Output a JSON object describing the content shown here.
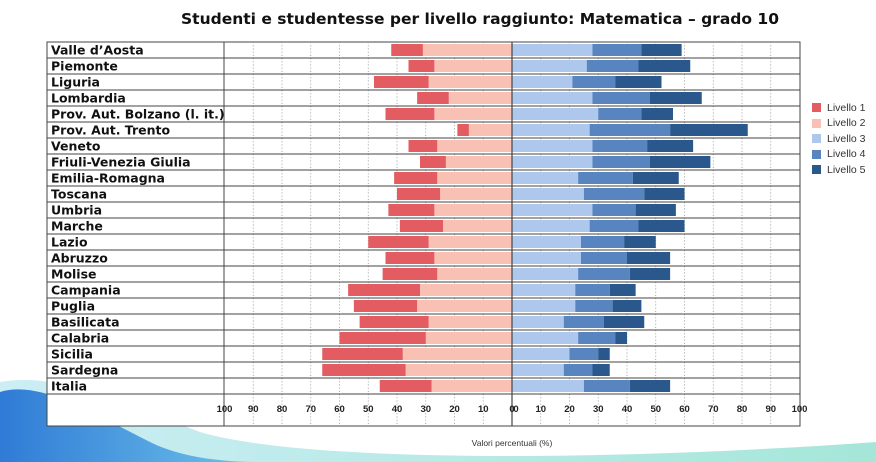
{
  "chart_data": {
    "type": "bar",
    "orientation": "horizontal-diverging",
    "title": "Studenti e studentesse per livello raggiunto: Matematica – grado 10",
    "xlabel": "Valori percentuali (%)",
    "categories": [
      "Valle d’Aosta",
      "Piemonte",
      "Liguria",
      "Lombardia",
      "Prov. Aut. Bolzano (l. it.)",
      "Prov. Aut. Trento",
      "Veneto",
      "Friuli-Venezia Giulia",
      "Emilia-Romagna",
      "Toscana",
      "Umbria",
      "Marche",
      "Lazio",
      "Abruzzo",
      "Molise",
      "Campania",
      "Puglia",
      "Basilicata",
      "Calabria",
      "Sicilia",
      "Sardegna",
      "Italia"
    ],
    "left_tick_labels": [
      "100",
      "90",
      "80",
      "70",
      "60",
      "50",
      "40",
      "30",
      "20",
      "10",
      "0"
    ],
    "right_tick_labels": [
      "0",
      "10",
      "20",
      "30",
      "40",
      "50",
      "60",
      "70",
      "80",
      "90",
      "100"
    ],
    "xlim_left": [
      100,
      0
    ],
    "xlim_right": [
      0,
      100
    ],
    "grid": true,
    "legend_position": "right",
    "series": [
      {
        "name": "Livello 1",
        "side": "left",
        "color": "#e25c62",
        "values": [
          11,
          9,
          19,
          11,
          17,
          4,
          10,
          9,
          15,
          15,
          16,
          15,
          21,
          17,
          19,
          25,
          22,
          24,
          30,
          28,
          29,
          18
        ]
      },
      {
        "name": "Livello 2",
        "side": "left",
        "color": "#f9c0b4",
        "values": [
          31,
          27,
          29,
          22,
          27,
          15,
          26,
          23,
          26,
          25,
          27,
          24,
          29,
          27,
          26,
          32,
          33,
          29,
          30,
          38,
          37,
          28
        ]
      },
      {
        "name": "Livello 3",
        "side": "right",
        "color": "#adc8ec",
        "values": [
          28,
          26,
          21,
          28,
          30,
          27,
          28,
          28,
          23,
          25,
          28,
          27,
          24,
          24,
          23,
          22,
          22,
          18,
          23,
          20,
          18,
          25
        ]
      },
      {
        "name": "Livello 4",
        "side": "right",
        "color": "#5885bf",
        "values": [
          17,
          18,
          15,
          20,
          15,
          28,
          19,
          20,
          19,
          21,
          15,
          17,
          15,
          16,
          18,
          12,
          13,
          14,
          13,
          10,
          10,
          16
        ]
      },
      {
        "name": "Livello 5",
        "side": "right",
        "color": "#2a588c",
        "values": [
          14,
          18,
          16,
          18,
          11,
          27,
          16,
          21,
          16,
          14,
          14,
          16,
          11,
          15,
          14,
          9,
          10,
          14,
          4,
          4,
          6,
          14
        ]
      }
    ]
  }
}
